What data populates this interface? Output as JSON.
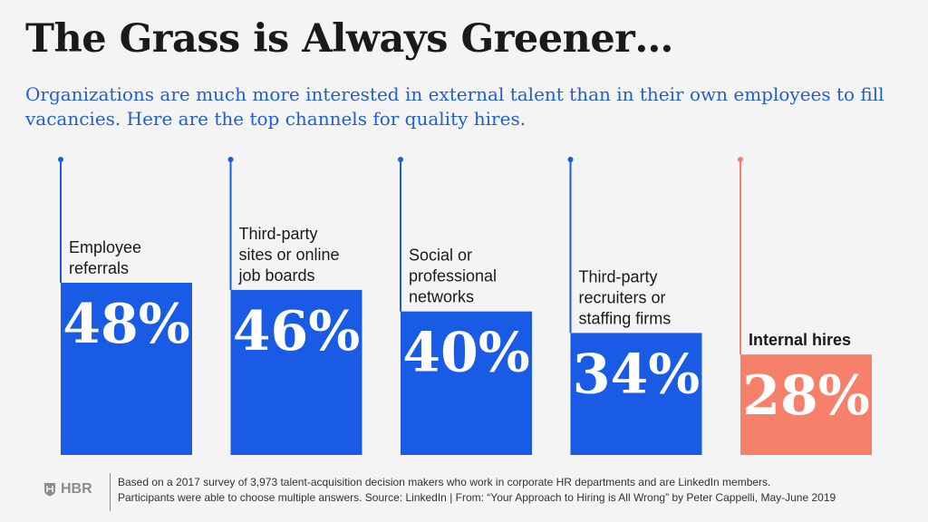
{
  "header": {
    "title": "The Grass is Always Greener…",
    "subtitle": "Organizations are much more interested in external talent than in their own employees to fill vacancies. Here are the top channels for quality hires."
  },
  "chart_data": {
    "type": "bar",
    "categories": [
      [
        "Employee",
        "referrals"
      ],
      [
        "Third-party",
        "sites or online",
        "job boards"
      ],
      [
        "Social or",
        "professional",
        "networks"
      ],
      [
        "Third-party",
        "recruiters or",
        "staffing firms"
      ],
      [
        "Internal hires"
      ]
    ],
    "values": [
      48,
      46,
      40,
      34,
      28
    ],
    "value_labels": [
      "48%",
      "46%",
      "40%",
      "34%",
      "28%"
    ],
    "highlight": [
      false,
      false,
      false,
      false,
      true
    ],
    "ylim": [
      0,
      48
    ],
    "grid": false,
    "legend": "none"
  },
  "colors": {
    "bar": "#1a5be6",
    "highlight": "#f7806b",
    "highlight_label": "#1a1a1a",
    "title": "#1a1a1a",
    "subtitle": "#1f5fd6"
  },
  "footer": {
    "logo_text": "HBR",
    "logo_icon": "shield-icon",
    "note_line1": "Based on a 2017 survey of 3,973 talent-acquisition decision makers who work in corporate HR departments and are LinkedIn members.",
    "note_line2": "Participants were able to choose multiple answers. Source: LinkedIn | From: “Your Approach to Hiring is All Wrong” by Peter Cappelli, May-June 2019"
  }
}
